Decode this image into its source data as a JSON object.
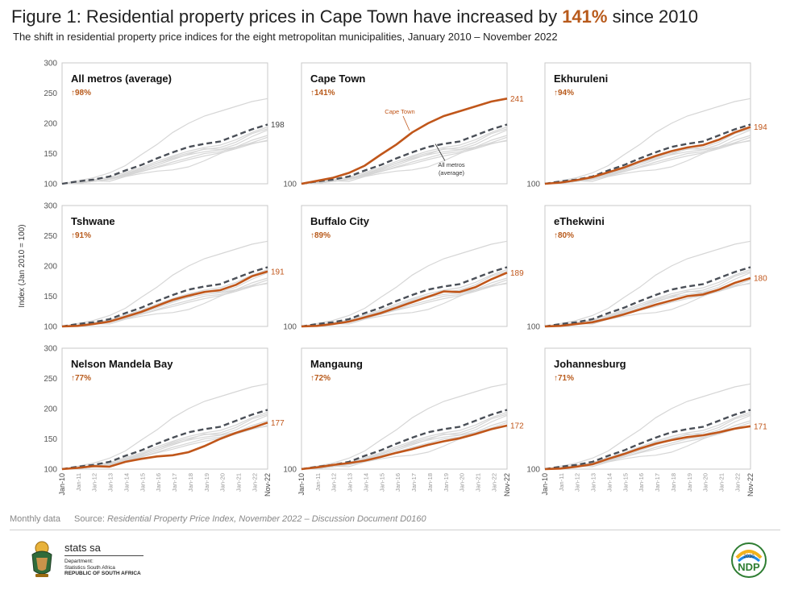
{
  "header": {
    "title_prefix": "Figure 1: Residential property prices in Cape Town have increased by ",
    "title_highlight": "141%",
    "title_suffix": " since 2010",
    "subtitle": "The shift in residential property price indices for the eight metropolitan municipalities, January 2010 – November 2022"
  },
  "colors": {
    "metro": "#c0561a",
    "average": "#4a4f57",
    "background_lines": "#d6d6d6",
    "panel_border": "#c9c9c9",
    "highlight": "#b85a1b"
  },
  "chart_data": {
    "type": "line",
    "ylabel": "Index (Jan 2010 = 100)",
    "ylim": [
      100,
      300
    ],
    "yticks": [
      100,
      150,
      200,
      250,
      300
    ],
    "x_tick_labels": [
      "Jan-10",
      "Jan-11",
      "Jan-12",
      "Jan-13",
      "Jan-14",
      "Jan-15",
      "Jan-16",
      "Jan-17",
      "Jan-18",
      "Jan-19",
      "Jan-20",
      "Jan-21",
      "Jan-22",
      "Nov-22"
    ],
    "x_start": "Jan-10",
    "x_end": "Nov-22",
    "average_series": {
      "x": [
        "Jan-10",
        "Jan-11",
        "Jan-12",
        "Jan-13",
        "Jan-14",
        "Jan-15",
        "Jan-16",
        "Jan-17",
        "Jan-18",
        "Jan-19",
        "Jan-20",
        "Jan-21",
        "Jan-22",
        "Nov-22"
      ],
      "values": [
        100,
        104,
        107,
        112,
        122,
        131,
        142,
        152,
        161,
        166,
        170,
        180,
        190,
        198
      ]
    },
    "background_series": [
      {
        "values": [
          100,
          105,
          110,
          118,
          130,
          148,
          165,
          185,
          200,
          212,
          220,
          228,
          236,
          241
        ]
      },
      {
        "values": [
          100,
          102,
          106,
          111,
          119,
          127,
          137,
          146,
          154,
          160,
          164,
          173,
          185,
          194
        ]
      },
      {
        "values": [
          100,
          101,
          104,
          108,
          116,
          124,
          134,
          144,
          151,
          157,
          160,
          169,
          183,
          191
        ]
      },
      {
        "values": [
          100,
          101,
          104,
          108,
          115,
          122,
          131,
          140,
          149,
          158,
          157,
          165,
          178,
          189
        ]
      },
      {
        "values": [
          100,
          101,
          104,
          107,
          113,
          120,
          128,
          136,
          143,
          150,
          153,
          161,
          172,
          180
        ]
      },
      {
        "values": [
          100,
          102,
          105,
          104,
          112,
          117,
          121,
          123,
          128,
          138,
          150,
          160,
          168,
          177
        ]
      },
      {
        "values": [
          100,
          103,
          107,
          110,
          114,
          120,
          127,
          133,
          140,
          146,
          151,
          158,
          166,
          172
        ]
      },
      {
        "values": [
          100,
          101,
          104,
          108,
          117,
          125,
          134,
          142,
          148,
          153,
          156,
          161,
          167,
          171
        ]
      }
    ],
    "panels": [
      {
        "name": "All metros (average)",
        "change": "98%",
        "end_label": "198",
        "series": "average",
        "show_yticks": true
      },
      {
        "name": "Cape Town",
        "change": "141%",
        "end_label": "241",
        "series": [
          100,
          105,
          110,
          118,
          130,
          148,
          165,
          185,
          200,
          212,
          220,
          228,
          236,
          241
        ],
        "show_yticks": false,
        "annotation_metro": "Cape Town",
        "annotation_average": "All metros\n(average)"
      },
      {
        "name": "Ekhuruleni",
        "change": "94%",
        "end_label": "194",
        "series": [
          100,
          102,
          106,
          111,
          119,
          127,
          137,
          146,
          154,
          160,
          164,
          173,
          185,
          194
        ],
        "show_yticks": false
      },
      {
        "name": "Tshwane",
        "change": "91%",
        "end_label": "191",
        "series": [
          100,
          101,
          104,
          108,
          116,
          124,
          134,
          144,
          151,
          157,
          160,
          169,
          183,
          191
        ],
        "show_yticks": true
      },
      {
        "name": "Buffalo City",
        "change": "89%",
        "end_label": "189",
        "series": [
          100,
          101,
          104,
          108,
          115,
          122,
          131,
          140,
          149,
          158,
          157,
          165,
          178,
          189
        ],
        "show_yticks": false
      },
      {
        "name": "eThekwini",
        "change": "80%",
        "end_label": "180",
        "series": [
          100,
          101,
          104,
          107,
          113,
          120,
          128,
          136,
          143,
          150,
          153,
          161,
          172,
          180
        ],
        "show_yticks": false
      },
      {
        "name": "Nelson Mandela Bay",
        "change": "77%",
        "end_label": "177",
        "series": [
          100,
          102,
          105,
          104,
          112,
          117,
          121,
          123,
          128,
          138,
          150,
          160,
          168,
          177
        ],
        "show_yticks": true
      },
      {
        "name": "Mangaung",
        "change": "72%",
        "end_label": "172",
        "series": [
          100,
          103,
          107,
          110,
          114,
          120,
          127,
          133,
          140,
          146,
          151,
          158,
          166,
          172
        ],
        "show_yticks": false
      },
      {
        "name": "Johannesburg",
        "change": "71%",
        "end_label": "171",
        "series": [
          100,
          101,
          104,
          108,
          117,
          125,
          134,
          142,
          148,
          153,
          156,
          161,
          167,
          171
        ],
        "show_yticks": false
      }
    ]
  },
  "footer": {
    "note": "Monthly data",
    "source_prefix": "Source: ",
    "source_italic": "Residential Property Price Index, November 2022 – Discussion Document D0160",
    "logo_brand": "stats sa",
    "logo_line1": "Department:",
    "logo_line2": "Statistics South Africa",
    "logo_line3": "REPUBLIC OF SOUTH AFRICA",
    "ndp_text": "NDP",
    "ndp_year": "2030"
  }
}
